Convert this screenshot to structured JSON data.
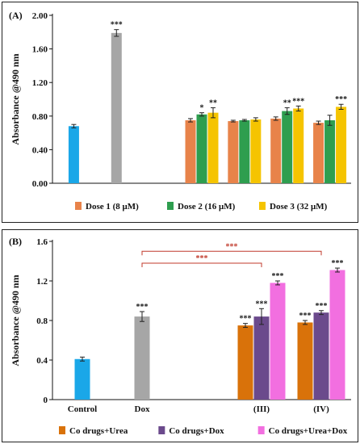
{
  "chart_data": [
    {
      "panel": "(A)",
      "type": "bar",
      "ylabel": "Absorbance @490 nm",
      "ylim": [
        0,
        2.0
      ],
      "yticks": [
        "0.00",
        "0.40",
        "0.80",
        "1.20",
        "1.60",
        "2.00"
      ],
      "legend": [
        {
          "name": "Dose 1 (8 μM)",
          "color": "#e8834a"
        },
        {
          "name": "Dose 2 (16 μM)",
          "color": "#2e9e4f"
        },
        {
          "name": "Dose 3 (32 μM)",
          "color": "#f5c400"
        }
      ],
      "groups": [
        {
          "bars": [
            {
              "value": 0.68,
              "err": 0.02,
              "color": "#1aa7e8",
              "sig": ""
            }
          ]
        },
        {
          "bars": [
            {
              "value": 1.79,
              "err": 0.04,
              "color": "#a6a6a6",
              "sig": "***"
            }
          ]
        },
        {
          "bars": []
        },
        {
          "bars": [
            {
              "value": 0.75,
              "err": 0.02,
              "color": "#e8834a",
              "sig": ""
            },
            {
              "value": 0.82,
              "err": 0.02,
              "color": "#2e9e4f",
              "sig": "*"
            },
            {
              "value": 0.84,
              "err": 0.06,
              "color": "#f5c400",
              "sig": "**"
            }
          ]
        },
        {
          "bars": [
            {
              "value": 0.74,
              "err": 0.01,
              "color": "#e8834a",
              "sig": ""
            },
            {
              "value": 0.75,
              "err": 0.01,
              "color": "#2e9e4f",
              "sig": ""
            },
            {
              "value": 0.76,
              "err": 0.02,
              "color": "#f5c400",
              "sig": ""
            }
          ]
        },
        {
          "bars": [
            {
              "value": 0.77,
              "err": 0.02,
              "color": "#e8834a",
              "sig": ""
            },
            {
              "value": 0.86,
              "err": 0.04,
              "color": "#2e9e4f",
              "sig": "**"
            },
            {
              "value": 0.89,
              "err": 0.03,
              "color": "#f5c400",
              "sig": "***"
            }
          ]
        },
        {
          "bars": [
            {
              "value": 0.72,
              "err": 0.02,
              "color": "#e8834a",
              "sig": ""
            },
            {
              "value": 0.75,
              "err": 0.06,
              "color": "#2e9e4f",
              "sig": ""
            },
            {
              "value": 0.91,
              "err": 0.03,
              "color": "#f5c400",
              "sig": "***"
            }
          ]
        }
      ]
    },
    {
      "panel": "(B)",
      "type": "bar",
      "ylabel": "Absorbance @490 nm",
      "ylim": [
        0,
        1.6
      ],
      "yticks": [
        "0",
        "0.4",
        "0.8",
        "1.2",
        "1.6"
      ],
      "categories": [
        "Control",
        "Dox",
        "",
        "(III)",
        "(IV)"
      ],
      "legend": [
        {
          "name": "Co drugs+Urea",
          "color": "#d9720a"
        },
        {
          "name": "Co drugs+Dox",
          "color": "#6b4a8c"
        },
        {
          "name": "Co drugs+Urea+Dox",
          "color": "#f26fe0"
        }
      ],
      "groups": [
        {
          "bars": [
            {
              "value": 0.41,
              "err": 0.02,
              "color": "#1aa7e8",
              "sig": ""
            }
          ]
        },
        {
          "bars": [
            {
              "value": 0.84,
              "err": 0.05,
              "color": "#a6a6a6",
              "sig": "***"
            }
          ]
        },
        {
          "bars": []
        },
        {
          "bars": [
            {
              "value": 0.75,
              "err": 0.02,
              "color": "#d9720a",
              "sig": "***"
            },
            {
              "value": 0.84,
              "err": 0.08,
              "color": "#6b4a8c",
              "sig": "***"
            },
            {
              "value": 1.18,
              "err": 0.02,
              "color": "#f26fe0",
              "sig": "***"
            }
          ]
        },
        {
          "bars": [
            {
              "value": 0.78,
              "err": 0.02,
              "color": "#d9720a",
              "sig": "***"
            },
            {
              "value": 0.88,
              "err": 0.02,
              "color": "#6b4a8c",
              "sig": "***"
            },
            {
              "value": 1.31,
              "err": 0.02,
              "color": "#f26fe0",
              "sig": "***"
            }
          ]
        }
      ],
      "brackets": [
        {
          "from_group": 1,
          "to_group": 3,
          "level": 1.38,
          "label": "***"
        },
        {
          "from_group": 1,
          "to_group": 4,
          "level": 1.5,
          "label": "***"
        }
      ],
      "bracket_color": "#c0392b"
    }
  ]
}
